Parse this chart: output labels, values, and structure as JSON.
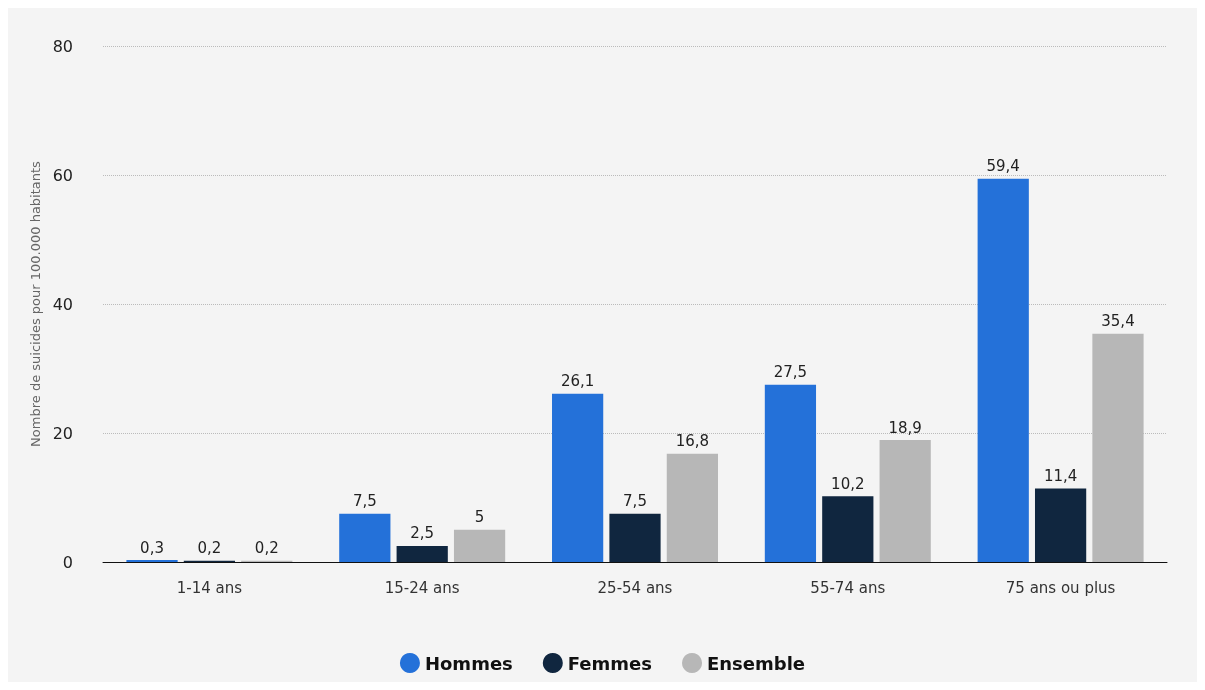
{
  "chart_data": {
    "type": "bar",
    "ylabel": "Nombre de suicides pour 100.000 habitants",
    "categories": [
      "1-14 ans",
      "15-24 ans",
      "25-54 ans",
      "55-74 ans",
      "75 ans ou plus"
    ],
    "series": [
      {
        "name": "Hommes",
        "color": "#2471d9",
        "values": [
          0.3,
          7.5,
          26.1,
          27.5,
          59.4
        ],
        "value_labels": [
          "0,3",
          "7,5",
          "26,1",
          "27,5",
          "59,4"
        ]
      },
      {
        "name": "Femmes",
        "color": "#10263f",
        "values": [
          0.2,
          2.5,
          7.5,
          10.2,
          11.4
        ],
        "value_labels": [
          "0,2",
          "2,5",
          "7,5",
          "10,2",
          "11,4"
        ]
      },
      {
        "name": "Ensemble",
        "color": "#b7b7b7",
        "values": [
          0.2,
          5,
          16.8,
          18.9,
          35.4
        ],
        "value_labels": [
          "0,2",
          "5",
          "16,8",
          "18,9",
          "35,4"
        ]
      }
    ],
    "ylim": [
      0,
      80
    ],
    "yticks": [
      0,
      20,
      40,
      60,
      80
    ],
    "grid": "y",
    "legend": "bottom"
  }
}
